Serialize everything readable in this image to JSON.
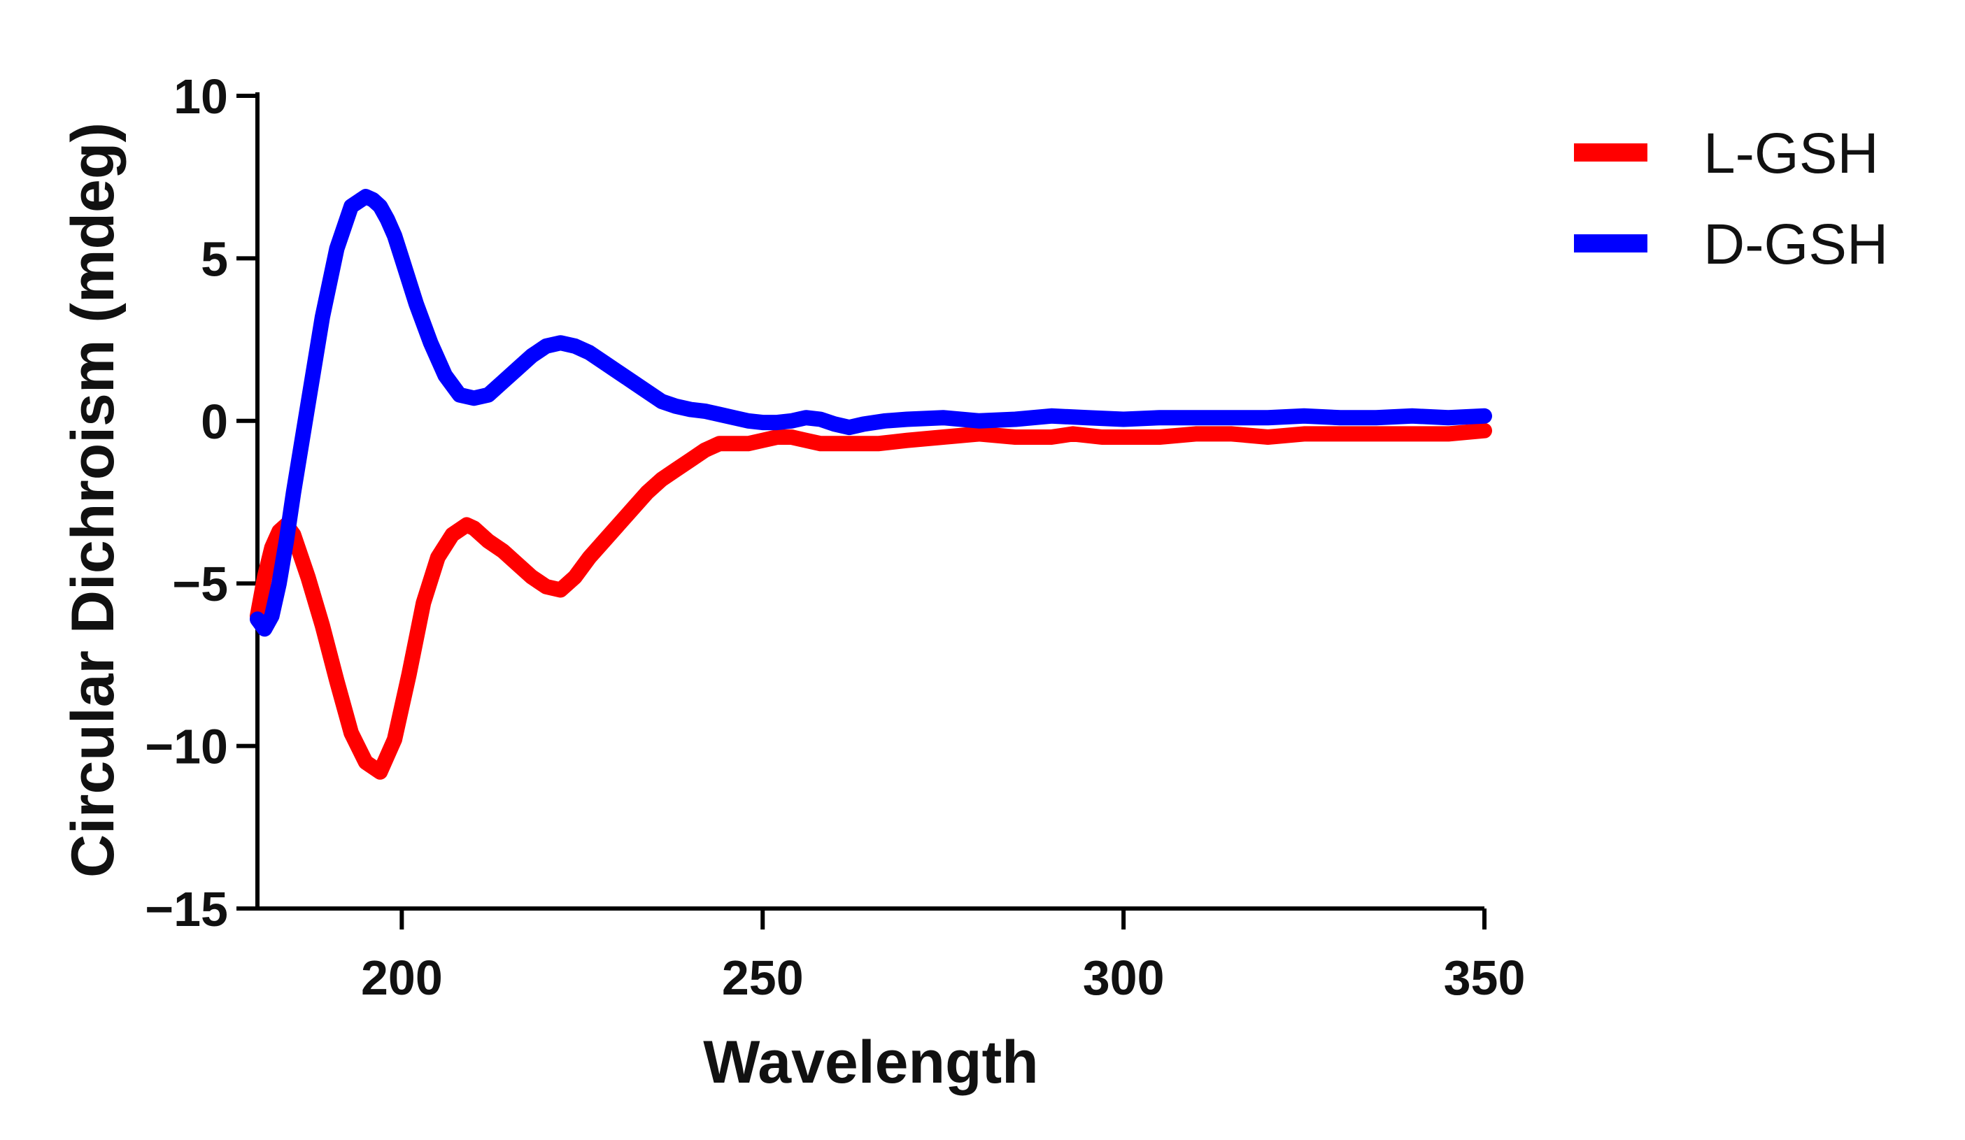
{
  "chart_data": {
    "type": "line",
    "title": "",
    "xlabel": "Wavelength",
    "ylabel": "Circular Dichroism (mdeg)",
    "xlim": [
      180,
      350
    ],
    "ylim": [
      -15,
      10
    ],
    "xticks": [
      200,
      250,
      300,
      350
    ],
    "yticks": [
      10,
      5,
      0,
      -5,
      -10,
      -15
    ],
    "xtick_labels": [
      "200",
      "250",
      "300",
      "350"
    ],
    "ytick_labels": [
      "10",
      "5",
      "0",
      "−5",
      "−10",
      "−15"
    ],
    "grid": false,
    "legend_position": "top-right",
    "series": [
      {
        "name": "L-GSH",
        "color": "#ff0000",
        "x": [
          180,
          181,
          182,
          183,
          184,
          185,
          187,
          189,
          191,
          193,
          195,
          197,
          199,
          201,
          203,
          205,
          207,
          209,
          210,
          212,
          214,
          216,
          218,
          220,
          222,
          224,
          226,
          228,
          230,
          232,
          234,
          236,
          238,
          240,
          242,
          244,
          246,
          248,
          250,
          252,
          254,
          256,
          258,
          260,
          263,
          266,
          270,
          275,
          280,
          285,
          290,
          293,
          297,
          300,
          305,
          310,
          315,
          320,
          325,
          330,
          335,
          340,
          345,
          350
        ],
        "y": [
          -6.0,
          -4.8,
          -3.9,
          -3.4,
          -3.2,
          -3.5,
          -4.8,
          -6.3,
          -8.0,
          -9.6,
          -10.5,
          -10.8,
          -9.8,
          -7.8,
          -5.6,
          -4.2,
          -3.5,
          -3.2,
          -3.3,
          -3.7,
          -4.0,
          -4.4,
          -4.8,
          -5.1,
          -5.2,
          -4.8,
          -4.2,
          -3.7,
          -3.2,
          -2.7,
          -2.2,
          -1.8,
          -1.5,
          -1.2,
          -0.9,
          -0.7,
          -0.7,
          -0.7,
          -0.6,
          -0.5,
          -0.5,
          -0.6,
          -0.7,
          -0.7,
          -0.7,
          -0.7,
          -0.6,
          -0.5,
          -0.4,
          -0.5,
          -0.5,
          -0.4,
          -0.5,
          -0.5,
          -0.5,
          -0.4,
          -0.4,
          -0.5,
          -0.4,
          -0.4,
          -0.4,
          -0.4,
          -0.4,
          -0.3
        ]
      },
      {
        "name": "D-GSH",
        "color": "#0000ff",
        "x": [
          180,
          181,
          182,
          183,
          184,
          185,
          187,
          189,
          191,
          193,
          195,
          196,
          197,
          198,
          199,
          200,
          202,
          204,
          206,
          208,
          210,
          212,
          214,
          216,
          218,
          220,
          222,
          224,
          226,
          228,
          230,
          232,
          234,
          236,
          238,
          240,
          242,
          244,
          246,
          248,
          250,
          252,
          254,
          256,
          258,
          260,
          262,
          264,
          267,
          270,
          275,
          280,
          285,
          290,
          295,
          300,
          305,
          310,
          315,
          320,
          325,
          330,
          335,
          340,
          345,
          350
        ],
        "y": [
          -6.1,
          -6.4,
          -6.0,
          -5.0,
          -3.7,
          -2.2,
          0.5,
          3.2,
          5.3,
          6.6,
          6.9,
          6.8,
          6.6,
          6.2,
          5.7,
          5.0,
          3.6,
          2.4,
          1.4,
          0.8,
          0.7,
          0.8,
          1.2,
          1.6,
          2.0,
          2.3,
          2.4,
          2.3,
          2.1,
          1.8,
          1.5,
          1.2,
          0.9,
          0.6,
          0.45,
          0.35,
          0.3,
          0.2,
          0.1,
          0.0,
          -0.05,
          -0.05,
          0.0,
          0.1,
          0.05,
          -0.1,
          -0.2,
          -0.1,
          0.0,
          0.05,
          0.1,
          0.0,
          0.05,
          0.15,
          0.1,
          0.05,
          0.1,
          0.1,
          0.1,
          0.1,
          0.15,
          0.1,
          0.1,
          0.15,
          0.1,
          0.15
        ]
      }
    ]
  }
}
